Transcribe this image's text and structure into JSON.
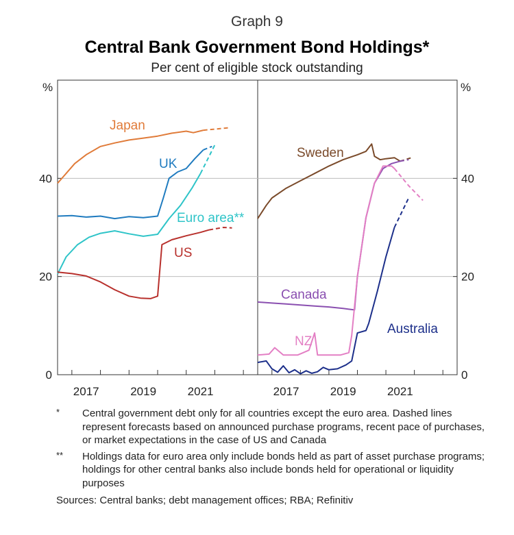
{
  "header": {
    "graph_label": "Graph 9",
    "title": "Central Bank Government Bond Holdings*",
    "subtitle": "Per cent of eligible stock outstanding"
  },
  "colors": {
    "japan": "#e07b39",
    "uk": "#1f7bbf",
    "euro": "#2ec4c8",
    "us": "#b8302c",
    "sweden": "#7a4a2a",
    "canada": "#8a4fb0",
    "nz": "#e37fc4",
    "australia": "#1c2f8a",
    "grid": "#bdbdbd",
    "axis": "#333333"
  },
  "chart_data": [
    {
      "type": "line",
      "panel": "left",
      "ylabel": "%",
      "ylim": [
        0,
        60
      ],
      "y_ticks": [
        0,
        20,
        40
      ],
      "x_ticks": [
        "2017",
        "2019",
        "2021"
      ],
      "x_range": [
        2016.5,
        2023.5
      ],
      "series": [
        {
          "name": "Japan",
          "key": "japan",
          "x": [
            2016.5,
            2016.8,
            2017.1,
            2017.5,
            2018.0,
            2018.5,
            2019.0,
            2019.5,
            2020.0,
            2020.5,
            2021.0,
            2021.25,
            2021.6
          ],
          "y": [
            39.0,
            41.0,
            43.0,
            44.8,
            46.5,
            47.2,
            47.8,
            48.2,
            48.6,
            49.2,
            49.6,
            49.3,
            49.8
          ],
          "forecast_x": [
            2021.6,
            2022.5
          ],
          "forecast_y": [
            49.8,
            50.3
          ]
        },
        {
          "name": "UK",
          "key": "uk",
          "x": [
            2016.5,
            2017.0,
            2017.5,
            2018.0,
            2018.5,
            2019.0,
            2019.5,
            2020.0,
            2020.2,
            2020.4,
            2020.7,
            2021.0,
            2021.3,
            2021.6
          ],
          "y": [
            32.3,
            32.4,
            32.1,
            32.3,
            31.8,
            32.2,
            32.0,
            32.3,
            36.0,
            40.0,
            41.3,
            42.0,
            44.0,
            45.8
          ],
          "forecast_x": [
            2021.6,
            2021.9
          ],
          "forecast_y": [
            45.8,
            46.5
          ]
        },
        {
          "name": "Euro area**",
          "key": "euro",
          "x": [
            2016.5,
            2016.8,
            2017.2,
            2017.6,
            2018.0,
            2018.5,
            2019.0,
            2019.5,
            2020.0,
            2020.4,
            2020.8,
            2021.2,
            2021.5
          ],
          "y": [
            20.5,
            24.0,
            26.5,
            28.0,
            28.8,
            29.3,
            28.7,
            28.2,
            28.6,
            31.8,
            34.5,
            38.0,
            41.0
          ],
          "forecast_x": [
            2021.5,
            2022.0
          ],
          "forecast_y": [
            41.0,
            46.8
          ]
        },
        {
          "name": "US",
          "key": "us",
          "x": [
            2016.5,
            2017.0,
            2017.5,
            2018.0,
            2018.5,
            2019.0,
            2019.4,
            2019.75,
            2020.0,
            2020.15,
            2020.5,
            2021.0,
            2021.5,
            2021.8
          ],
          "y": [
            20.9,
            20.6,
            20.1,
            18.9,
            17.3,
            16.0,
            15.6,
            15.5,
            16.0,
            26.5,
            27.5,
            28.3,
            29.0,
            29.5
          ],
          "forecast_x": [
            2021.8,
            2022.3,
            2022.6
          ],
          "forecast_y": [
            29.5,
            30.0,
            29.9
          ]
        }
      ]
    },
    {
      "type": "line",
      "panel": "right",
      "ylabel": "%",
      "ylim": [
        0,
        60
      ],
      "y_ticks": [
        0,
        20,
        40
      ],
      "x_ticks": [
        "2017",
        "2019",
        "2021"
      ],
      "x_range": [
        2016.5,
        2023.5
      ],
      "series": [
        {
          "name": "Sweden",
          "key": "sweden",
          "x": [
            2016.5,
            2016.8,
            2017.0,
            2017.5,
            2018.0,
            2018.5,
            2019.0,
            2019.5,
            2020.0,
            2020.3,
            2020.5,
            2020.6,
            2020.8,
            2021.0,
            2021.3,
            2021.5
          ],
          "y": [
            31.8,
            34.5,
            36.0,
            38.0,
            39.5,
            41.0,
            42.5,
            43.8,
            44.8,
            45.5,
            47.0,
            44.5,
            43.8,
            44.0,
            44.2,
            43.5
          ],
          "forecast_x": [
            2021.5,
            2021.9
          ],
          "forecast_y": [
            43.5,
            44.2
          ]
        },
        {
          "name": "Canada",
          "key": "canada",
          "x": [
            2016.5,
            2017.0,
            2017.5,
            2018.0,
            2018.5,
            2019.0,
            2019.5,
            2019.9,
            2020.0,
            2020.3,
            2020.6,
            2020.9,
            2021.2,
            2021.5
          ],
          "y": [
            14.8,
            14.6,
            14.4,
            14.2,
            14.0,
            13.8,
            13.5,
            13.2,
            20.0,
            32.0,
            39.0,
            42.0,
            43.0,
            43.5
          ],
          "forecast_x": [
            2021.5,
            2021.8
          ],
          "forecast_y": [
            43.5,
            43.8
          ]
        },
        {
          "name": "NZ",
          "key": "nz",
          "x": [
            2016.5,
            2016.9,
            2017.1,
            2017.4,
            2017.6,
            2017.9,
            2018.1,
            2018.3,
            2018.5,
            2018.6,
            2018.9,
            2019.4,
            2019.7,
            2019.8,
            2020.0,
            2020.3,
            2020.6,
            2020.9,
            2021.2,
            2021.3
          ],
          "y": [
            4.0,
            4.2,
            5.5,
            4.0,
            4.0,
            4.0,
            4.5,
            5.0,
            8.5,
            4.0,
            4.0,
            4.0,
            4.5,
            8.0,
            20.0,
            32.0,
            39.0,
            42.5,
            42.5,
            42.0
          ],
          "forecast_x": [
            2021.3,
            2021.8,
            2022.3
          ],
          "forecast_y": [
            42.0,
            38.5,
            35.5
          ]
        },
        {
          "name": "Australia",
          "key": "australia",
          "x": [
            2016.5,
            2016.8,
            2017.0,
            2017.2,
            2017.4,
            2017.6,
            2017.8,
            2018.0,
            2018.2,
            2018.4,
            2018.6,
            2018.8,
            2019.0,
            2019.3,
            2019.6,
            2019.8,
            2020.0,
            2020.3,
            2020.4,
            2020.7,
            2021.0,
            2021.3
          ],
          "y": [
            2.5,
            2.8,
            1.2,
            0.5,
            1.8,
            0.4,
            1.0,
            0.2,
            0.8,
            0.3,
            0.6,
            1.5,
            1.0,
            1.2,
            2.0,
            2.8,
            8.5,
            9.0,
            10.5,
            17.0,
            24.0,
            30.0
          ],
          "forecast_x": [
            2021.3,
            2021.8
          ],
          "forecast_y": [
            30.0,
            36.0
          ]
        }
      ]
    }
  ],
  "footnotes": [
    {
      "mark": "*",
      "text": "Central government debt only for all countries except the euro area. Dashed lines represent forecasts based on announced purchase programs, recent pace of purchases, or market expectations in the case of US and Canada"
    },
    {
      "mark": "**",
      "text": "Holdings data for euro area only include bonds held as part of asset purchase programs; holdings for other central banks also include bonds held for operational or liquidity purposes"
    }
  ],
  "sources": "Sources: Central banks; debt management offices; RBA; Refinitiv"
}
